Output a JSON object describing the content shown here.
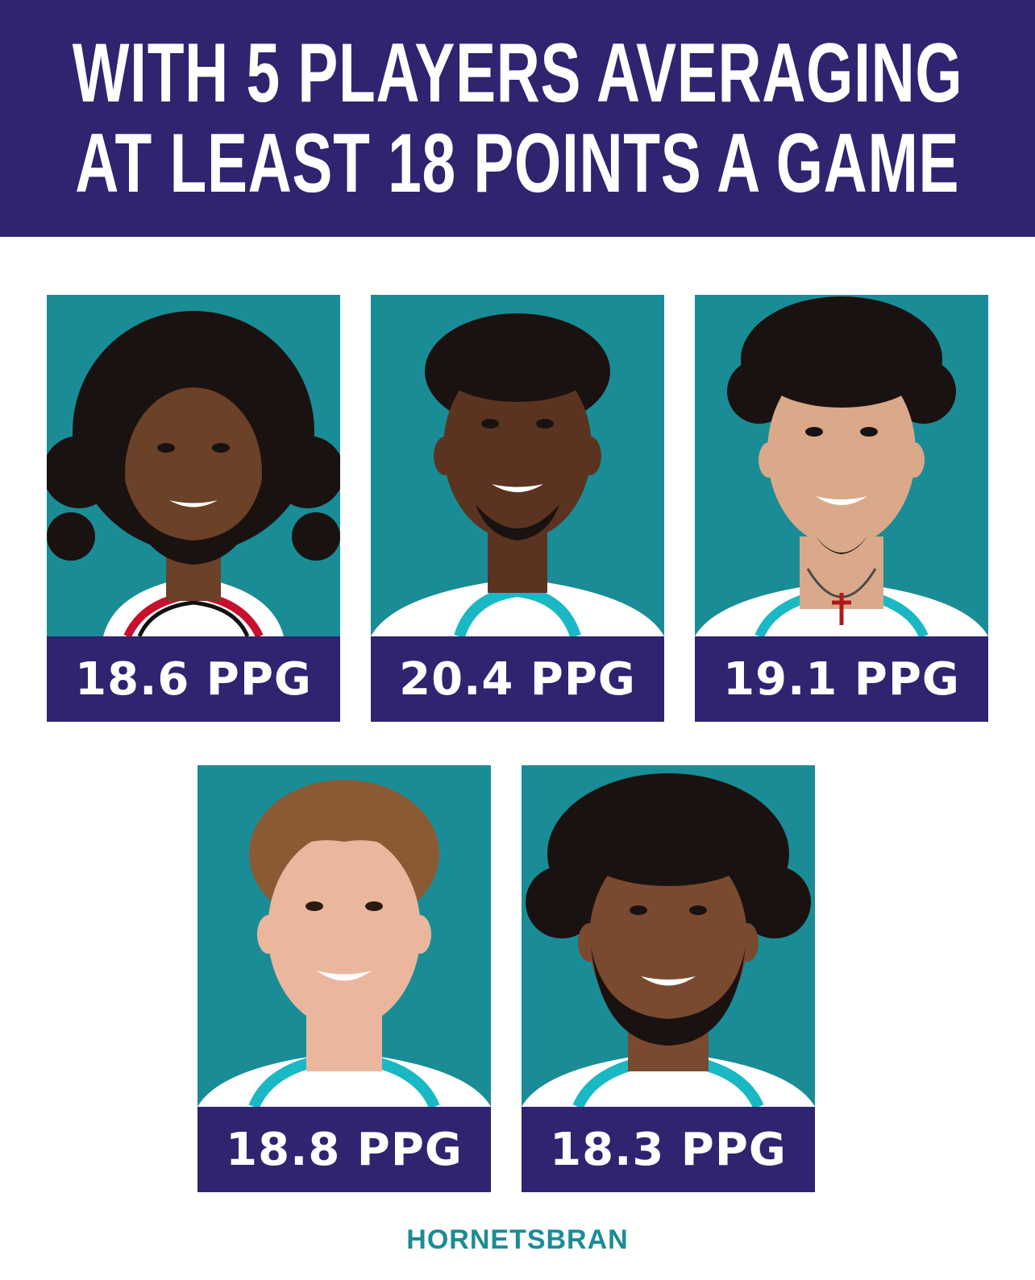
{
  "header": {
    "line1": "WITH 5 PLAYERS AVERAGING",
    "line2": "AT LEAST 18 POINTS A GAME"
  },
  "colors": {
    "brand_purple": "#2f2470",
    "teal_background": "#1a8c96",
    "jersey_teal": "#1ab8c4",
    "credit_teal": "#1a8c96"
  },
  "players": [
    {
      "stat": "18.6 PPG",
      "jersey": "red-trim-jersey",
      "hair": "long-curly",
      "skin": "#6b4127"
    },
    {
      "stat": "20.4 PPG",
      "jersey": "teal-trim-jersey",
      "hair": "short-curly",
      "skin": "#5a3420"
    },
    {
      "stat": "19.1 PPG",
      "jersey": "teal-trim-jersey",
      "hair": "curly-top",
      "skin": "#d9a98a"
    },
    {
      "stat": "18.8 PPG",
      "jersey": "teal-trim-jersey",
      "hair": "swept",
      "skin": "#eab79e"
    },
    {
      "stat": "18.3 PPG",
      "jersey": "teal-trim-jersey",
      "hair": "afro",
      "skin": "#7a4a30"
    }
  ],
  "credit": "HORNETSBRAN"
}
